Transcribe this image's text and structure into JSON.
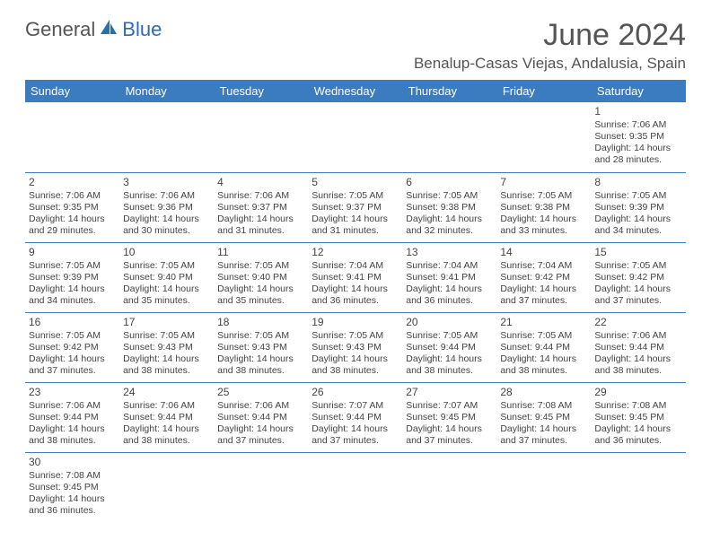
{
  "logo": {
    "text1": "General",
    "text2": "Blue"
  },
  "title": "June 2024",
  "location": "Benalup-Casas Viejas, Andalusia, Spain",
  "colors": {
    "header_bg": "#3b7bbf",
    "header_fg": "#ffffff",
    "text": "#444444",
    "title": "#555555"
  },
  "dayHeaders": [
    "Sunday",
    "Monday",
    "Tuesday",
    "Wednesday",
    "Thursday",
    "Friday",
    "Saturday"
  ],
  "weeks": [
    [
      null,
      null,
      null,
      null,
      null,
      null,
      {
        "n": "1",
        "sr": "Sunrise: 7:06 AM",
        "ss": "Sunset: 9:35 PM",
        "dl1": "Daylight: 14 hours",
        "dl2": "and 28 minutes."
      }
    ],
    [
      {
        "n": "2",
        "sr": "Sunrise: 7:06 AM",
        "ss": "Sunset: 9:35 PM",
        "dl1": "Daylight: 14 hours",
        "dl2": "and 29 minutes."
      },
      {
        "n": "3",
        "sr": "Sunrise: 7:06 AM",
        "ss": "Sunset: 9:36 PM",
        "dl1": "Daylight: 14 hours",
        "dl2": "and 30 minutes."
      },
      {
        "n": "4",
        "sr": "Sunrise: 7:06 AM",
        "ss": "Sunset: 9:37 PM",
        "dl1": "Daylight: 14 hours",
        "dl2": "and 31 minutes."
      },
      {
        "n": "5",
        "sr": "Sunrise: 7:05 AM",
        "ss": "Sunset: 9:37 PM",
        "dl1": "Daylight: 14 hours",
        "dl2": "and 31 minutes."
      },
      {
        "n": "6",
        "sr": "Sunrise: 7:05 AM",
        "ss": "Sunset: 9:38 PM",
        "dl1": "Daylight: 14 hours",
        "dl2": "and 32 minutes."
      },
      {
        "n": "7",
        "sr": "Sunrise: 7:05 AM",
        "ss": "Sunset: 9:38 PM",
        "dl1": "Daylight: 14 hours",
        "dl2": "and 33 minutes."
      },
      {
        "n": "8",
        "sr": "Sunrise: 7:05 AM",
        "ss": "Sunset: 9:39 PM",
        "dl1": "Daylight: 14 hours",
        "dl2": "and 34 minutes."
      }
    ],
    [
      {
        "n": "9",
        "sr": "Sunrise: 7:05 AM",
        "ss": "Sunset: 9:39 PM",
        "dl1": "Daylight: 14 hours",
        "dl2": "and 34 minutes."
      },
      {
        "n": "10",
        "sr": "Sunrise: 7:05 AM",
        "ss": "Sunset: 9:40 PM",
        "dl1": "Daylight: 14 hours",
        "dl2": "and 35 minutes."
      },
      {
        "n": "11",
        "sr": "Sunrise: 7:05 AM",
        "ss": "Sunset: 9:40 PM",
        "dl1": "Daylight: 14 hours",
        "dl2": "and 35 minutes."
      },
      {
        "n": "12",
        "sr": "Sunrise: 7:04 AM",
        "ss": "Sunset: 9:41 PM",
        "dl1": "Daylight: 14 hours",
        "dl2": "and 36 minutes."
      },
      {
        "n": "13",
        "sr": "Sunrise: 7:04 AM",
        "ss": "Sunset: 9:41 PM",
        "dl1": "Daylight: 14 hours",
        "dl2": "and 36 minutes."
      },
      {
        "n": "14",
        "sr": "Sunrise: 7:04 AM",
        "ss": "Sunset: 9:42 PM",
        "dl1": "Daylight: 14 hours",
        "dl2": "and 37 minutes."
      },
      {
        "n": "15",
        "sr": "Sunrise: 7:05 AM",
        "ss": "Sunset: 9:42 PM",
        "dl1": "Daylight: 14 hours",
        "dl2": "and 37 minutes."
      }
    ],
    [
      {
        "n": "16",
        "sr": "Sunrise: 7:05 AM",
        "ss": "Sunset: 9:42 PM",
        "dl1": "Daylight: 14 hours",
        "dl2": "and 37 minutes."
      },
      {
        "n": "17",
        "sr": "Sunrise: 7:05 AM",
        "ss": "Sunset: 9:43 PM",
        "dl1": "Daylight: 14 hours",
        "dl2": "and 38 minutes."
      },
      {
        "n": "18",
        "sr": "Sunrise: 7:05 AM",
        "ss": "Sunset: 9:43 PM",
        "dl1": "Daylight: 14 hours",
        "dl2": "and 38 minutes."
      },
      {
        "n": "19",
        "sr": "Sunrise: 7:05 AM",
        "ss": "Sunset: 9:43 PM",
        "dl1": "Daylight: 14 hours",
        "dl2": "and 38 minutes."
      },
      {
        "n": "20",
        "sr": "Sunrise: 7:05 AM",
        "ss": "Sunset: 9:44 PM",
        "dl1": "Daylight: 14 hours",
        "dl2": "and 38 minutes."
      },
      {
        "n": "21",
        "sr": "Sunrise: 7:05 AM",
        "ss": "Sunset: 9:44 PM",
        "dl1": "Daylight: 14 hours",
        "dl2": "and 38 minutes."
      },
      {
        "n": "22",
        "sr": "Sunrise: 7:06 AM",
        "ss": "Sunset: 9:44 PM",
        "dl1": "Daylight: 14 hours",
        "dl2": "and 38 minutes."
      }
    ],
    [
      {
        "n": "23",
        "sr": "Sunrise: 7:06 AM",
        "ss": "Sunset: 9:44 PM",
        "dl1": "Daylight: 14 hours",
        "dl2": "and 38 minutes."
      },
      {
        "n": "24",
        "sr": "Sunrise: 7:06 AM",
        "ss": "Sunset: 9:44 PM",
        "dl1": "Daylight: 14 hours",
        "dl2": "and 38 minutes."
      },
      {
        "n": "25",
        "sr": "Sunrise: 7:06 AM",
        "ss": "Sunset: 9:44 PM",
        "dl1": "Daylight: 14 hours",
        "dl2": "and 37 minutes."
      },
      {
        "n": "26",
        "sr": "Sunrise: 7:07 AM",
        "ss": "Sunset: 9:44 PM",
        "dl1": "Daylight: 14 hours",
        "dl2": "and 37 minutes."
      },
      {
        "n": "27",
        "sr": "Sunrise: 7:07 AM",
        "ss": "Sunset: 9:45 PM",
        "dl1": "Daylight: 14 hours",
        "dl2": "and 37 minutes."
      },
      {
        "n": "28",
        "sr": "Sunrise: 7:08 AM",
        "ss": "Sunset: 9:45 PM",
        "dl1": "Daylight: 14 hours",
        "dl2": "and 37 minutes."
      },
      {
        "n": "29",
        "sr": "Sunrise: 7:08 AM",
        "ss": "Sunset: 9:45 PM",
        "dl1": "Daylight: 14 hours",
        "dl2": "and 36 minutes."
      }
    ],
    [
      {
        "n": "30",
        "sr": "Sunrise: 7:08 AM",
        "ss": "Sunset: 9:45 PM",
        "dl1": "Daylight: 14 hours",
        "dl2": "and 36 minutes."
      },
      null,
      null,
      null,
      null,
      null,
      null
    ]
  ]
}
